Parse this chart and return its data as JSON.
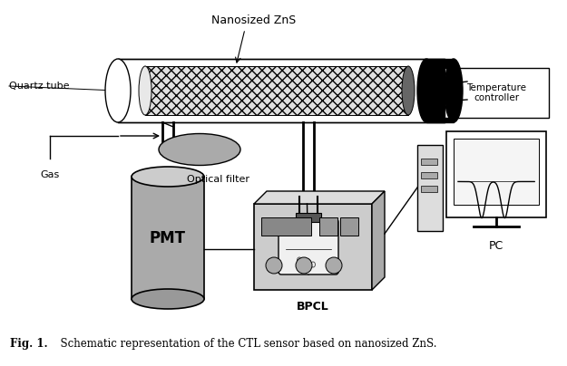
{
  "caption_bold": "Fig. 1.",
  "caption_text": "  Schematic representation of the CTL sensor based on nanosized ZnS.",
  "bg_color": "#ffffff",
  "label_nanosized": "Nanosized ZnS",
  "label_quartz": "Quartz tube",
  "label_temp": "Temperature\ncontroller",
  "label_gas": "Gas",
  "label_optical": "Optical filter",
  "label_pmt": "PMT",
  "label_bpcl": "BPCL",
  "label_pc": "PC",
  "fig_width": 6.25,
  "fig_height": 4.04,
  "dpi": 100
}
